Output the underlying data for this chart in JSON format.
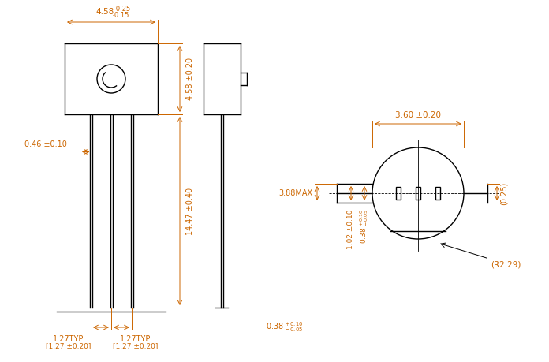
{
  "bg_color": "#ffffff",
  "line_color": "#000000",
  "dim_color": "#cc6600",
  "fig_width": 6.96,
  "fig_height": 4.59,
  "dpi": 100,
  "annotations": {
    "top_width": "4.58",
    "top_tol": "+0.25\n-0.15",
    "body_height": "4.58 ±0.20",
    "lead_length": "14.47 ±0.40",
    "lead_thickness": "0.46 ±0.10",
    "pitch_left": "1.27TYP\n[1.27 ±0.20]",
    "pitch_right": "1.27TYP\n[1.27 ±0.20]",
    "lead_dia": "0.38 +0.10\n        -0.05",
    "side_width": "3.60 ±0.20",
    "side_height": "3.88MAX",
    "tab_width": "1.02 ±0.10",
    "tab_thick": "0.38 +0.10\n       -0.05",
    "radius": "(R2.29)",
    "flat": "(0.25)"
  }
}
